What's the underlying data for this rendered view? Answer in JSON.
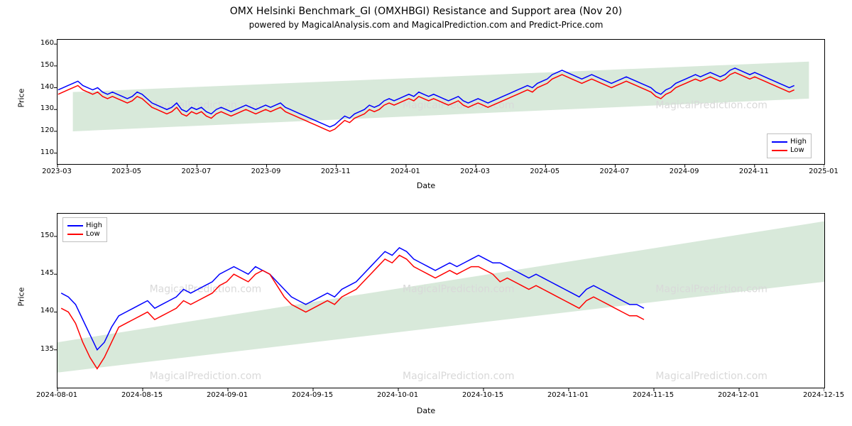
{
  "title": "OMX Helsinki Benchmark_GI (OMXHBGI) Resistance and Support area (Nov 20)",
  "subtitle": "powered by MagicalAnalysis.com and MagicalPrediction.com and Predict-Price.com",
  "watermark_text": "MagicalPrediction.com",
  "colors": {
    "high_line": "#0000ff",
    "low_line": "#ff0000",
    "support_fill": "#c8e0cb",
    "border": "#000000",
    "bg": "#ffffff",
    "watermark": "#d9d9d9"
  },
  "chart1": {
    "xlabel": "Date",
    "ylabel": "Price",
    "ylim": [
      105,
      162
    ],
    "yticks": [
      110,
      120,
      130,
      140,
      150,
      160
    ],
    "xticks": [
      "2023-03",
      "2023-05",
      "2023-07",
      "2023-09",
      "2023-11",
      "2024-01",
      "2024-03",
      "2024-05",
      "2024-07",
      "2024-09",
      "2024-11",
      "2025-01"
    ],
    "legend": {
      "position": "bottom-right",
      "items": [
        {
          "label": "High",
          "color": "#0000ff"
        },
        {
          "label": "Low",
          "color": "#ff0000"
        }
      ]
    },
    "support_polygon": [
      [
        0.02,
        138
      ],
      [
        0.98,
        152
      ],
      [
        0.98,
        135
      ],
      [
        0.02,
        120
      ]
    ],
    "high_series": [
      139,
      140,
      141,
      142,
      143,
      141,
      140,
      139,
      140,
      138,
      137,
      138,
      137,
      136,
      135,
      136,
      138,
      137,
      135,
      133,
      132,
      131,
      130,
      131,
      133,
      130,
      129,
      131,
      130,
      131,
      129,
      128,
      130,
      131,
      130,
      129,
      130,
      131,
      132,
      131,
      130,
      131,
      132,
      131,
      132,
      133,
      131,
      130,
      129,
      128,
      127,
      126,
      125,
      124,
      123,
      122,
      123,
      125,
      127,
      126,
      128,
      129,
      130,
      132,
      131,
      132,
      134,
      135,
      134,
      135,
      136,
      137,
      136,
      138,
      137,
      136,
      137,
      136,
      135,
      134,
      135,
      136,
      134,
      133,
      134,
      135,
      134,
      133,
      134,
      135,
      136,
      137,
      138,
      139,
      140,
      141,
      140,
      142,
      143,
      144,
      146,
      147,
      148,
      147,
      146,
      145,
      144,
      145,
      146,
      145,
      144,
      143,
      142,
      143,
      144,
      145,
      144,
      143,
      142,
      141,
      140,
      138,
      137,
      139,
      140,
      142,
      143,
      144,
      145,
      146,
      145,
      146,
      147,
      146,
      145,
      146,
      148,
      149,
      148,
      147,
      146,
      147,
      146,
      145,
      144,
      143,
      142,
      141,
      140,
      141
    ],
    "low_series": [
      137,
      138,
      139,
      140,
      141,
      139,
      138,
      137,
      138,
      136,
      135,
      136,
      135,
      134,
      133,
      134,
      136,
      135,
      133,
      131,
      130,
      129,
      128,
      129,
      131,
      128,
      127,
      129,
      128,
      129,
      127,
      126,
      128,
      129,
      128,
      127,
      128,
      129,
      130,
      129,
      128,
      129,
      130,
      129,
      130,
      131,
      129,
      128,
      127,
      126,
      125,
      124,
      123,
      122,
      121,
      120,
      121,
      123,
      125,
      124,
      126,
      127,
      128,
      130,
      129,
      130,
      132,
      133,
      132,
      133,
      134,
      135,
      134,
      136,
      135,
      134,
      135,
      134,
      133,
      132,
      133,
      134,
      132,
      131,
      132,
      133,
      132,
      131,
      132,
      133,
      134,
      135,
      136,
      137,
      138,
      139,
      138,
      140,
      141,
      142,
      144,
      145,
      146,
      145,
      144,
      143,
      142,
      143,
      144,
      143,
      142,
      141,
      140,
      141,
      142,
      143,
      142,
      141,
      140,
      139,
      138,
      136,
      135,
      137,
      138,
      140,
      141,
      142,
      143,
      144,
      143,
      144,
      145,
      144,
      143,
      144,
      146,
      147,
      146,
      145,
      144,
      145,
      144,
      143,
      142,
      141,
      140,
      139,
      138,
      139
    ]
  },
  "chart2": {
    "xlabel": "Date",
    "ylabel": "Price",
    "ylim": [
      130,
      153
    ],
    "yticks": [
      135,
      140,
      145,
      150
    ],
    "xticks": [
      "2024-08-01",
      "2024-08-15",
      "2024-09-01",
      "2024-09-15",
      "2024-10-01",
      "2024-10-15",
      "2024-11-01",
      "2024-11-15",
      "2024-12-01",
      "2024-12-15"
    ],
    "legend": {
      "position": "top-left",
      "items": [
        {
          "label": "High",
          "color": "#0000ff"
        },
        {
          "label": "Low",
          "color": "#ff0000"
        }
      ]
    },
    "support_polygon": [
      [
        0.0,
        136
      ],
      [
        1.0,
        152
      ],
      [
        1.0,
        144
      ],
      [
        0.0,
        132
      ]
    ],
    "x_data_end": 0.76,
    "high_series": [
      142.5,
      142,
      141,
      139,
      137,
      135,
      136,
      138,
      139.5,
      140,
      140.5,
      141,
      141.5,
      140.5,
      141,
      141.5,
      142,
      143,
      142.5,
      143,
      143.5,
      144,
      145,
      145.5,
      146,
      145.5,
      145,
      146,
      145.5,
      145,
      144,
      143,
      142,
      141.5,
      141,
      141.5,
      142,
      142.5,
      142,
      143,
      143.5,
      144,
      145,
      146,
      147,
      148,
      147.5,
      148.5,
      148,
      147,
      146.5,
      146,
      145.5,
      146,
      146.5,
      146,
      146.5,
      147,
      147.5,
      147,
      146.5,
      146.5,
      146,
      145.5,
      145,
      144.5,
      145,
      144.5,
      144,
      143.5,
      143,
      142.5,
      142,
      143,
      143.5,
      143,
      142.5,
      142,
      141.5,
      141,
      141,
      140.5
    ],
    "low_series": [
      140.5,
      140,
      138.5,
      136,
      134,
      132.5,
      134,
      136,
      138,
      138.5,
      139,
      139.5,
      140,
      139,
      139.5,
      140,
      140.5,
      141.5,
      141,
      141.5,
      142,
      142.5,
      143.5,
      144,
      145,
      144.5,
      144,
      145,
      145.5,
      145,
      143.5,
      142,
      141,
      140.5,
      140,
      140.5,
      141,
      141.5,
      141,
      142,
      142.5,
      143,
      144,
      145,
      146,
      147,
      146.5,
      147.5,
      147,
      146,
      145.5,
      145,
      144.5,
      145,
      145.5,
      145,
      145.5,
      146,
      146,
      145.5,
      145,
      144,
      144.5,
      144,
      143.5,
      143,
      143.5,
      143,
      142.5,
      142,
      141.5,
      141,
      140.5,
      141.5,
      142,
      141.5,
      141,
      140.5,
      140,
      139.5,
      139.5,
      139
    ]
  }
}
